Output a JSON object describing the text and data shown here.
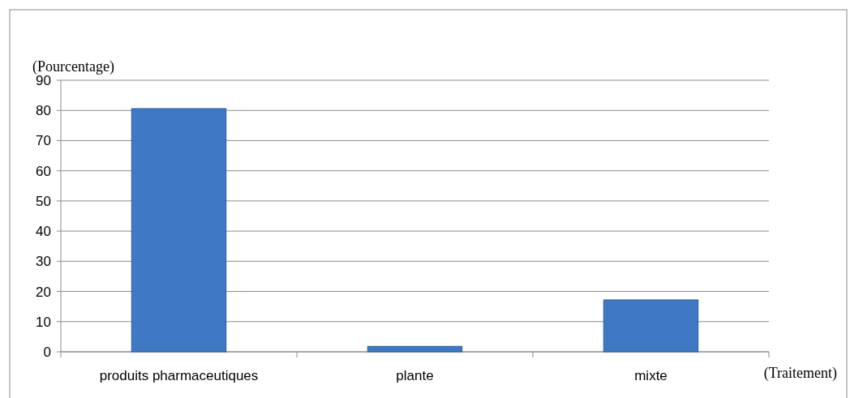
{
  "chart_data": {
    "type": "bar",
    "xlabel": "(Traitement)",
    "ylabel": "(Pourcentage)",
    "categories": [
      "produits pharmaceutiques",
      "plante",
      "mixte"
    ],
    "values": [
      80.6,
      1.8,
      17.2
    ],
    "color": "#3f78c4",
    "ylim": [
      0,
      90
    ],
    "yticks": [
      0,
      10,
      20,
      30,
      40,
      50,
      60,
      70,
      80,
      90
    ],
    "grid": "y"
  }
}
